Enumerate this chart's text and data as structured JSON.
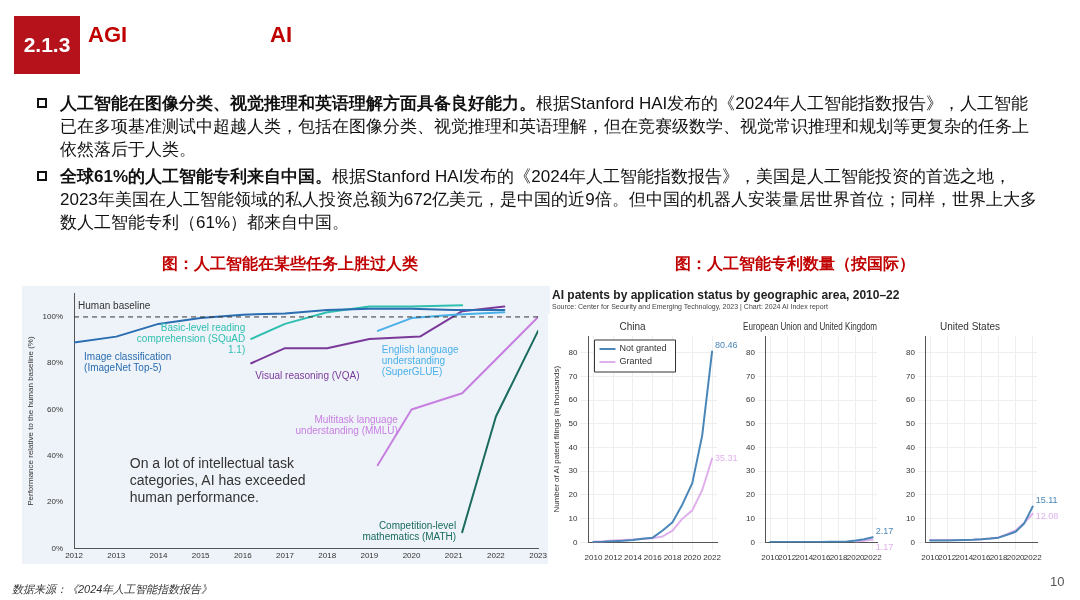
{
  "chart_data": [
    {
      "type": "other",
      "title": "2.1.3",
      "annotations": [
        "AGI",
        "AI",
        "人工智能在图像分类、视觉推理和英语理解方面具备良好能力。",
        "根据Stanford HAI发布的《2024年人工智能指数报告》，人工智能已在多项基准测试中超越人类，包括在图像分类、视觉推理和英语理解，但在竞赛级数学、视觉常识推理和规划等更复杂的任务上依然落后于人类。",
        "全球61%的人工智能专利来自中国。",
        "根据Stanford HAI发布的《2024年人工智能指数报告》，美国是人工智能投资的首选之地，2023年美国在人工智能领域的私人投资总额为672亿美元，是中国的近9倍。但中国的机器人安装量居世界首位；同样，世界上大多数人工智能专利（61%）都来自中国。",
        "数据来源：《2024年人工智能指数报告》",
        "10"
      ]
    },
    {
      "type": "line",
      "ylabel": "Performance relative to the human baseline (%)",
      "annotations": [
        "图：人工智能在某些任务上胜过人类",
        "On a lot of intellectual task categories, AI has exceeded human performance."
      ],
      "xlim": [
        2012,
        2023
      ],
      "xticks": [
        2012,
        2013,
        2014,
        2015,
        2016,
        2017,
        2018,
        2019,
        2020,
        2021,
        2022,
        2023
      ],
      "ylim": [
        0,
        110
      ],
      "yticks": [
        {
          "value": 0,
          "label": "0%"
        },
        {
          "value": 20,
          "label": "20%"
        },
        {
          "value": 40,
          "label": "40%"
        },
        {
          "value": 60,
          "label": "60%"
        },
        {
          "value": 80,
          "label": "80%"
        },
        {
          "value": 100,
          "label": "100%"
        }
      ],
      "grid": false,
      "legend": false,
      "ref_lines": [
        {
          "axis": "y",
          "value": 100,
          "label": "Human baseline",
          "color": "#333333",
          "line_style": "dashed"
        }
      ],
      "series": [
        {
          "name": "Image classification (ImageNet Top-5)",
          "color": "#2a6db0",
          "x": [
            2012,
            2013,
            2014,
            2015,
            2016,
            2017,
            2018,
            2019,
            2020,
            2021,
            2022.2
          ],
          "values": [
            89,
            91.5,
            97,
            99.5,
            101,
            101.5,
            103,
            103.5,
            103.5,
            103,
            103
          ]
        },
        {
          "name": "Basic-level reading comprehension (SQuAD 1.1)",
          "color": "#2fbfb0",
          "x": [
            2016.2,
            2017,
            2018,
            2019,
            2020,
            2021.2
          ],
          "values": [
            90.5,
            97,
            102,
            104.5,
            104.5,
            105
          ]
        },
        {
          "name": "English language understanding (SuperGLUE)",
          "color": "#4ab0e8",
          "x": [
            2019.2,
            2020,
            2021,
            2022.2
          ],
          "values": [
            94,
            99.5,
            101,
            102
          ]
        },
        {
          "name": "Visual reasoning (VQA)",
          "color": "#7b3a9a",
          "x": [
            2016.2,
            2017,
            2018,
            2019,
            2020.2,
            2021.2,
            2022.2
          ],
          "values": [
            80,
            86.5,
            86.5,
            90.5,
            91.5,
            102.5,
            104.5
          ]
        },
        {
          "name": "Multitask language understanding (MMLU)",
          "color": "#c77fe0",
          "x": [
            2019.2,
            2020,
            2021.2,
            2023
          ],
          "values": [
            36,
            60,
            67,
            100
          ]
        },
        {
          "name": "Competition-level mathematics (MATH)",
          "color": "#1a6b5e",
          "x": [
            2021.2,
            2022,
            2023
          ],
          "values": [
            7,
            57,
            94
          ]
        }
      ]
    },
    {
      "type": "line",
      "title": "China",
      "ylabel": "Number of AI patent filings (in thousands)",
      "annotations": [
        "图：人工智能专利数量（按国际）",
        "AI patents by application status by geographic area, 2010–22",
        "Source: Center for Security and Emerging Technology, 2023 | Chart: 2024 AI Index report"
      ],
      "x": [
        2010,
        2011,
        2012,
        2013,
        2014,
        2015,
        2016,
        2017,
        2018,
        2019,
        2020,
        2021,
        2022
      ],
      "xlim": [
        2009.5,
        2022.5
      ],
      "xticks": [
        2010,
        2012,
        2014,
        2016,
        2018,
        2020,
        2022
      ],
      "ylim": [
        0,
        87
      ],
      "yticks": [
        0,
        10,
        20,
        30,
        40,
        50,
        60,
        70,
        80
      ],
      "grid": true,
      "legend": "top left",
      "series": [
        {
          "name": "Not granted",
          "color": "#4a86b8",
          "values": [
            0.2,
            0.3,
            0.5,
            0.7,
            1,
            1.5,
            2,
            5,
            8.5,
            16,
            25,
            45,
            80.46
          ],
          "value_labels": [
            null,
            null,
            null,
            null,
            null,
            null,
            null,
            null,
            null,
            null,
            null,
            null,
            "80.46"
          ]
        },
        {
          "name": "Granted",
          "color": "#e0b0ec",
          "values": [
            0.3,
            0.5,
            0.8,
            1,
            1.2,
            1.5,
            1.8,
            2.5,
            5,
            10,
            13.5,
            22,
            35.31
          ],
          "value_labels": [
            null,
            null,
            null,
            null,
            null,
            null,
            null,
            null,
            null,
            null,
            null,
            null,
            "35.31"
          ]
        }
      ]
    },
    {
      "type": "line",
      "title": "European Union and United Kingdom",
      "x": [
        2010,
        2011,
        2012,
        2013,
        2014,
        2015,
        2016,
        2017,
        2018,
        2019,
        2020,
        2021,
        2022
      ],
      "xlim": [
        2009.5,
        2022.5
      ],
      "xticks": [
        2010,
        2012,
        2014,
        2016,
        2018,
        2020,
        2022
      ],
      "ylim": [
        0,
        87
      ],
      "yticks": [
        0,
        10,
        20,
        30,
        40,
        50,
        60,
        70,
        80
      ],
      "grid": true,
      "legend": false,
      "series": [
        {
          "color": "#4a86b8",
          "values": [
            0.2,
            0.2,
            0.2,
            0.2,
            0.2,
            0.2,
            0.2,
            0.3,
            0.3,
            0.4,
            0.8,
            1.3,
            2.17
          ],
          "value_labels": [
            null,
            null,
            null,
            null,
            null,
            null,
            null,
            null,
            null,
            null,
            null,
            null,
            "2.17"
          ]
        },
        {
          "color": "#e0b0ec",
          "values": [
            null,
            null,
            null,
            null,
            null,
            null,
            null,
            null,
            null,
            null,
            0.4,
            0.7,
            1.17
          ],
          "value_labels": [
            null,
            null,
            null,
            null,
            null,
            null,
            null,
            null,
            null,
            null,
            null,
            null,
            "1.17"
          ]
        }
      ]
    },
    {
      "type": "line",
      "title": "United States",
      "x": [
        2010,
        2011,
        2012,
        2013,
        2014,
        2015,
        2016,
        2017,
        2018,
        2019,
        2020,
        2021,
        2022
      ],
      "xlim": [
        2009.5,
        2022.5
      ],
      "xticks": [
        2010,
        2012,
        2014,
        2016,
        2018,
        2020,
        2022
      ],
      "ylim": [
        0,
        87
      ],
      "yticks": [
        0,
        10,
        20,
        30,
        40,
        50,
        60,
        70,
        80
      ],
      "grid": true,
      "legend": false,
      "series": [
        {
          "color": "#4a86b8",
          "values": [
            0.8,
            0.8,
            0.8,
            0.9,
            1,
            1.1,
            1.3,
            1.6,
            2,
            3.2,
            4.5,
            8,
            15.11
          ],
          "value_labels": [
            null,
            null,
            null,
            null,
            null,
            null,
            null,
            null,
            null,
            null,
            null,
            null,
            "15.11"
          ]
        },
        {
          "color": "#e0b0ec",
          "values": [
            1,
            1,
            1,
            1,
            1,
            1.1,
            1.3,
            1.6,
            2.1,
            3.5,
            5,
            8.3,
            12.08
          ],
          "value_labels": [
            null,
            null,
            null,
            null,
            null,
            null,
            null,
            null,
            null,
            null,
            null,
            null,
            "12.08"
          ]
        }
      ]
    }
  ]
}
